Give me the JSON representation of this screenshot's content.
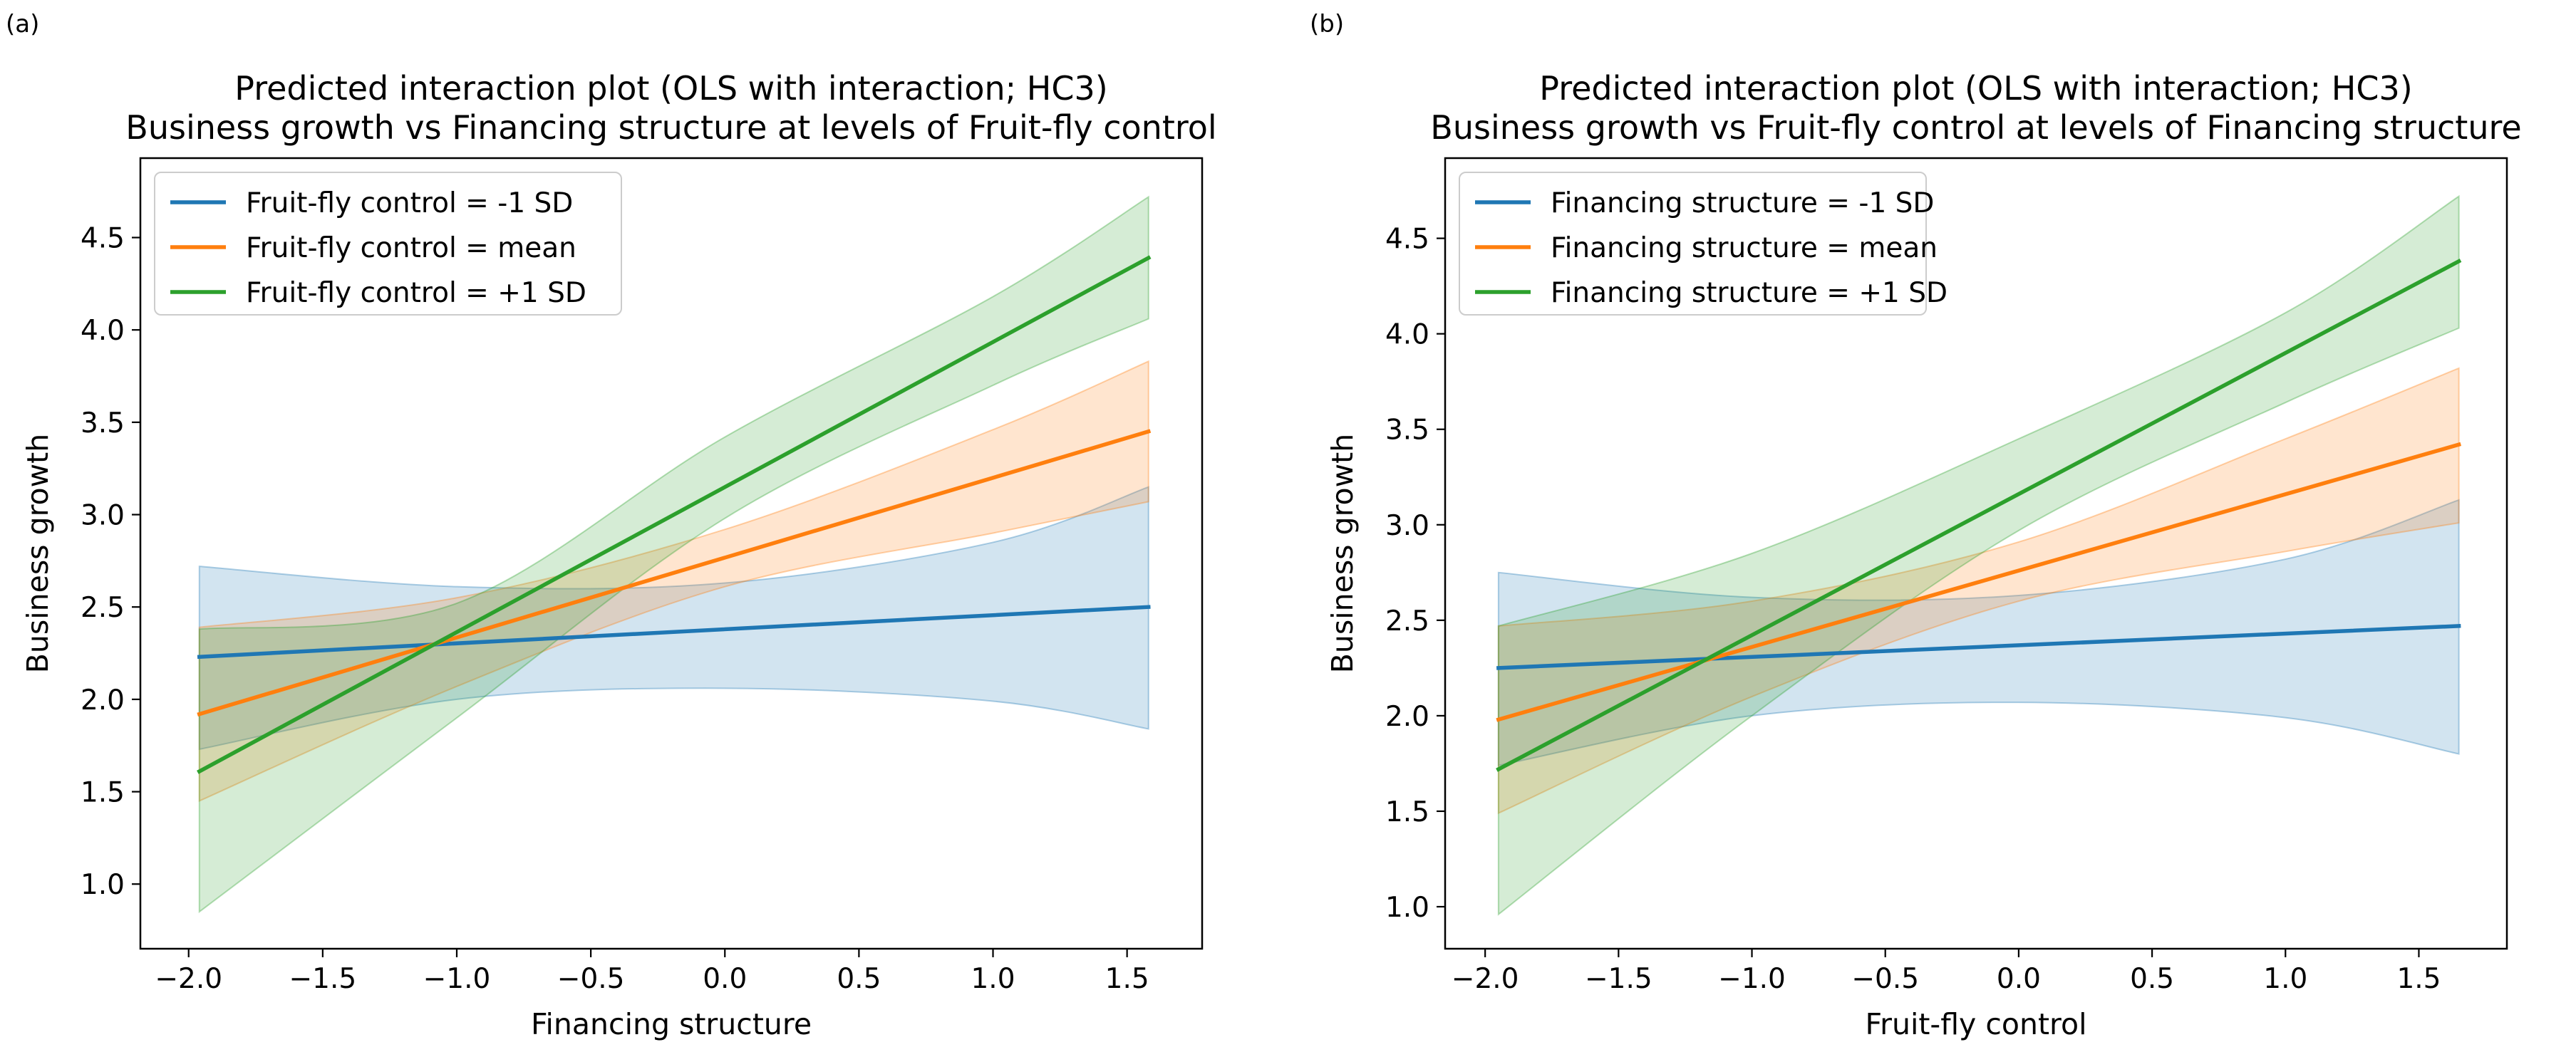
{
  "figure": {
    "panels": [
      {
        "id": "a",
        "panel_label": "(a)",
        "title_lines": [
          "Predicted interaction plot (OLS with interaction; HC3)",
          "Business growth vs Financing structure at levels of Fruit-fly control"
        ]
      },
      {
        "id": "b",
        "panel_label": "(b)",
        "title_lines": [
          "Predicted interaction plot (OLS with interaction; HC3)",
          "Business growth vs Fruit-fly control at levels of Financing structure"
        ]
      }
    ]
  },
  "chart_data": [
    {
      "type": "line",
      "title": "Predicted interaction plot (OLS with interaction; HC3)\nBusiness growth vs Financing structure at levels of Fruit-fly control",
      "xlabel": "Financing structure",
      "ylabel": "Business growth",
      "xlim": [
        -2.18,
        1.78
      ],
      "ylim": [
        0.65,
        4.93
      ],
      "xticks": [
        -2.0,
        -1.5,
        -1.0,
        -0.5,
        0.0,
        0.5,
        1.0,
        1.5
      ],
      "xtick_labels": [
        "−2.0",
        "−1.5",
        "−1.0",
        "−0.5",
        "0.0",
        "0.5",
        "1.0",
        "1.5"
      ],
      "yticks": [
        1.0,
        1.5,
        2.0,
        2.5,
        3.0,
        3.5,
        4.0,
        4.5
      ],
      "ytick_labels": [
        "1.0",
        "1.5",
        "2.0",
        "2.5",
        "3.0",
        "3.5",
        "4.0",
        "4.5"
      ],
      "legend_position": "upper-left",
      "x_range": [
        -1.96,
        1.58
      ],
      "series": [
        {
          "name": "Fruit-fly control = -1 SD",
          "color": "#1f77b4",
          "y_start": 2.23,
          "y_end": 2.5,
          "band": {
            "x": [
              -1.96,
              -1.0,
              0.0,
              1.0,
              1.58
            ],
            "lower": [
              1.73,
              2.0,
              2.06,
              1.99,
              1.84
            ],
            "upper": [
              2.72,
              2.61,
              2.63,
              2.85,
              3.15
            ]
          }
        },
        {
          "name": "Fruit-fly control = mean",
          "color": "#ff7f0e",
          "y_start": 1.92,
          "y_end": 3.45,
          "band": {
            "x": [
              -1.96,
              -1.0,
              0.0,
              1.0,
              1.58
            ],
            "lower": [
              1.45,
              2.07,
              2.61,
              2.9,
              3.07
            ],
            "upper": [
              2.39,
              2.55,
              2.92,
              3.46,
              3.83
            ]
          }
        },
        {
          "name": "Fruit-fly control = +1 SD",
          "color": "#2ca02c",
          "y_start": 1.61,
          "y_end": 4.39,
          "band": {
            "x": [
              -1.96,
              -1.0,
              0.0,
              1.0,
              1.58
            ],
            "lower": [
              0.85,
              1.9,
              2.98,
              3.7,
              4.06
            ],
            "upper": [
              2.38,
              2.52,
              3.42,
              4.18,
              4.72
            ]
          }
        }
      ]
    },
    {
      "type": "line",
      "title": "Predicted interaction plot (OLS with interaction; HC3)\nBusiness growth vs Fruit-fly control at levels of Financing structure",
      "xlabel": "Fruit-fly control",
      "ylabel": "Business growth",
      "xlim": [
        -2.15,
        1.83
      ],
      "ylim": [
        0.78,
        4.92
      ],
      "xticks": [
        -2.0,
        -1.5,
        -1.0,
        -0.5,
        0.0,
        0.5,
        1.0,
        1.5
      ],
      "xtick_labels": [
        "−2.0",
        "−1.5",
        "−1.0",
        "−0.5",
        "0.0",
        "0.5",
        "1.0",
        "1.5"
      ],
      "yticks": [
        1.0,
        1.5,
        2.0,
        2.5,
        3.0,
        3.5,
        4.0,
        4.5
      ],
      "ytick_labels": [
        "1.0",
        "1.5",
        "2.0",
        "2.5",
        "3.0",
        "3.5",
        "4.0",
        "4.5"
      ],
      "legend_position": "upper-left",
      "x_range": [
        -1.95,
        1.65
      ],
      "series": [
        {
          "name": "Financing structure = -1 SD",
          "color": "#1f77b4",
          "y_start": 2.25,
          "y_end": 2.47,
          "band": {
            "x": [
              -1.95,
              -1.0,
              0.0,
              1.0,
              1.65
            ],
            "lower": [
              1.74,
              2.0,
              2.07,
              1.99,
              1.8
            ],
            "upper": [
              2.75,
              2.62,
              2.63,
              2.82,
              3.13
            ]
          }
        },
        {
          "name": "Financing structure = mean",
          "color": "#ff7f0e",
          "y_start": 1.98,
          "y_end": 3.42,
          "band": {
            "x": [
              -1.95,
              -1.0,
              0.0,
              1.0,
              1.65
            ],
            "lower": [
              1.49,
              2.1,
              2.6,
              2.86,
              3.01
            ],
            "upper": [
              2.47,
              2.6,
              2.91,
              3.45,
              3.82
            ]
          }
        },
        {
          "name": "Financing structure = +1 SD",
          "color": "#2ca02c",
          "y_start": 1.72,
          "y_end": 4.38,
          "band": {
            "x": [
              -1.95,
              -1.0,
              0.0,
              1.0,
              1.65
            ],
            "lower": [
              0.96,
              2.0,
              2.97,
              3.64,
              4.03
            ],
            "upper": [
              2.47,
              2.85,
              3.45,
              4.11,
              4.72
            ]
          }
        }
      ]
    }
  ]
}
